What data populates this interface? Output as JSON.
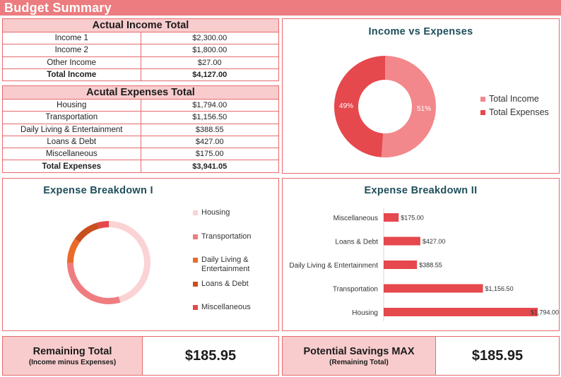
{
  "header": {
    "title": "Budget Summary"
  },
  "income_table": {
    "title": "Actual Income Total",
    "rows": [
      {
        "label": "Income 1",
        "value": "$2,300.00"
      },
      {
        "label": "Income 2",
        "value": "$1,800.00"
      },
      {
        "label": "Other Income",
        "value": "$27.00"
      }
    ],
    "total": {
      "label": "Total Income",
      "value": "$4,127.00"
    }
  },
  "expenses_table": {
    "title": "Acutal Expenses Total",
    "rows": [
      {
        "label": "Housing",
        "value": "$1,794.00"
      },
      {
        "label": "Transportation",
        "value": "$1,156.50"
      },
      {
        "label": "Daily Living & Entertainment",
        "value": "$388.55"
      },
      {
        "label": "Loans & Debt",
        "value": "$427.00"
      },
      {
        "label": "Miscellaneous",
        "value": "$175.00"
      }
    ],
    "total": {
      "label": "Total Expenses",
      "value": "$3,941.05"
    }
  },
  "chart_data": [
    {
      "type": "pie",
      "title": "Income vs Expenses",
      "categories": [
        "Total Income",
        "Total Expenses"
      ],
      "values": [
        4127.0,
        3941.05
      ],
      "data_labels": [
        "51%",
        "49%"
      ],
      "colors": [
        "#f2888b",
        "#e5484d"
      ],
      "legend": "right"
    },
    {
      "type": "pie",
      "title": "Expense Breakdown I",
      "categories": [
        "Housing",
        "Transportation",
        "Daily Living & Entertainment",
        "Loans & Debt",
        "Miscellaneous"
      ],
      "legend_labels": [
        [
          "Housing"
        ],
        [
          "Transportation"
        ],
        [
          "Daily Living &",
          "Entertainment"
        ],
        [
          "Loans & Debt"
        ],
        [
          "Miscellaneous"
        ]
      ],
      "values": [
        1794.0,
        1156.5,
        388.55,
        427.0,
        175.0
      ],
      "colors": [
        "#fbd3d4",
        "#ef7d80",
        "#e86b2a",
        "#c8501f",
        "#e5484d"
      ],
      "legend": "right"
    },
    {
      "type": "bar",
      "orientation": "horizontal",
      "title": "Expense Breakdown II",
      "categories": [
        "Housing",
        "Transportation",
        "Daily Living & Entertainment",
        "Loans & Debt",
        "Miscellaneous"
      ],
      "values": [
        1794.0,
        1156.5,
        388.55,
        427.0,
        175.0
      ],
      "data_labels": [
        "$1,794.00",
        "$1,156.50",
        "$388.55",
        "$427.00",
        "$175.00"
      ],
      "color": "#e5484d",
      "grid": false
    }
  ],
  "remaining": {
    "label": "Remaining Total",
    "sub": "(Income minus Expenses)",
    "value": "$185.95"
  },
  "savings": {
    "label": "Potential Savings MAX",
    "sub": "(Remaining Total)",
    "value": "$185.95"
  }
}
